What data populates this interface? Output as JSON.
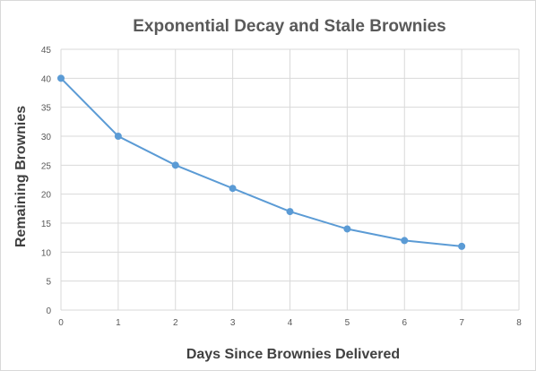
{
  "chart_data": {
    "type": "scatter",
    "title": "Exponential Decay and Stale Brownies",
    "xlabel": "Days Since Brownies Delivered",
    "ylabel": "Remaining Brownies",
    "xlim": [
      0,
      8
    ],
    "ylim": [
      0,
      45
    ],
    "xticks": [
      0,
      1,
      2,
      3,
      4,
      5,
      6,
      7,
      8
    ],
    "yticks": [
      0,
      5,
      10,
      15,
      20,
      25,
      30,
      35,
      40,
      45
    ],
    "grid": "both",
    "legend": "none",
    "color": "#5b9bd5",
    "series": [
      {
        "x": [
          0,
          1,
          2,
          3,
          4,
          5,
          6,
          7
        ],
        "y": [
          40,
          30,
          25,
          21,
          17,
          14,
          12,
          11
        ]
      }
    ]
  }
}
